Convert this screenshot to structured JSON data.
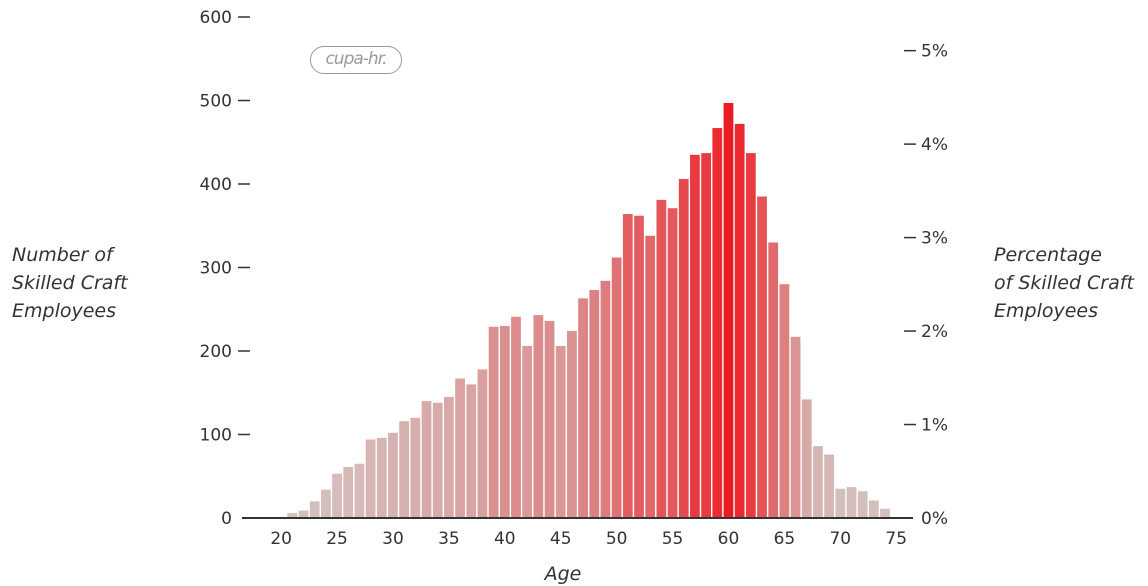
{
  "chart_data": {
    "type": "bar",
    "logo_text": "cupa-hr.",
    "xlabel": "Age",
    "ylabel_lines": [
      "Number of",
      "Skilled Craft",
      "Employees"
    ],
    "y2label_lines": [
      "Percentage",
      "of Skilled Craft",
      "Employees"
    ],
    "x_ticks": [
      "20",
      "25",
      "30",
      "35",
      "40",
      "45",
      "50",
      "55",
      "60",
      "65",
      "70",
      "75"
    ],
    "y_ticks": [
      "0",
      "100",
      "200",
      "300",
      "400",
      "500",
      "600"
    ],
    "y2_ticks": [
      "0%",
      "1%",
      "2%",
      "3%",
      "4%",
      "5%"
    ],
    "ylim": [
      0,
      600
    ],
    "y2lim": [
      0,
      0.0536
    ],
    "xlim": [
      16.5,
      76.5
    ],
    "color_low": "#d4c0bd",
    "color_high": "#ec1c24",
    "categories": [
      21,
      22,
      23,
      24,
      25,
      26,
      27,
      28,
      29,
      30,
      31,
      32,
      33,
      34,
      35,
      36,
      37,
      38,
      39,
      40,
      41,
      42,
      43,
      44,
      45,
      46,
      47,
      48,
      49,
      50,
      51,
      52,
      53,
      54,
      55,
      56,
      57,
      58,
      59,
      60,
      61,
      62,
      63,
      64,
      65,
      66,
      67,
      68,
      69,
      70,
      71,
      72,
      73,
      74
    ],
    "values": [
      6,
      9,
      20,
      34,
      53,
      61,
      65,
      94,
      96,
      102,
      116,
      120,
      140,
      138,
      145,
      167,
      160,
      178,
      229,
      230,
      241,
      206,
      243,
      236,
      206,
      224,
      263,
      273,
      284,
      312,
      364,
      362,
      338,
      381,
      371,
      406,
      435,
      437,
      467,
      497,
      472,
      437,
      385,
      330,
      280,
      217,
      142,
      86,
      76,
      35,
      37,
      32,
      21,
      11
    ]
  }
}
